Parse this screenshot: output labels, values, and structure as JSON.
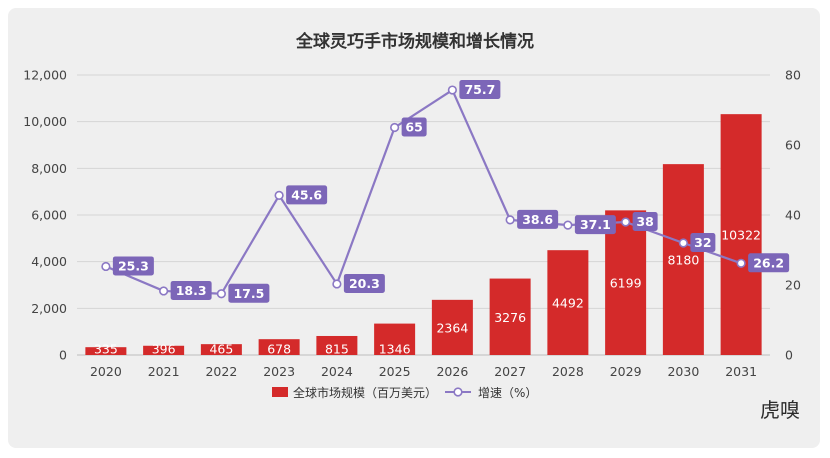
{
  "chart_data": {
    "type": "bar",
    "title": "全球灵巧手市场规模和增长情况",
    "categories": [
      "2020",
      "2021",
      "2022",
      "2023",
      "2024",
      "2025",
      "2026",
      "2027",
      "2028",
      "2029",
      "2030",
      "2031"
    ],
    "series": [
      {
        "name": "全球市场规模（百万美元）",
        "type": "bar",
        "axis": "left",
        "values": [
          335,
          396,
          465,
          678,
          815,
          1346,
          2364,
          3276,
          4492,
          6199,
          8180,
          10322
        ]
      },
      {
        "name": "增速（%）",
        "type": "line",
        "axis": "right",
        "values": [
          25.3,
          18.3,
          17.5,
          45.6,
          20.3,
          65,
          75.7,
          38.6,
          37.1,
          38,
          32,
          26.2
        ]
      }
    ],
    "y_left": {
      "min": 0,
      "max": 12000,
      "ticks": [
        "0",
        "2,000",
        "4,000",
        "6,000",
        "8,000",
        "10,000",
        "12,000"
      ]
    },
    "y_right": {
      "min": 0,
      "max": 80,
      "ticks": [
        "0",
        "20",
        "40",
        "60",
        "80"
      ]
    },
    "legend_position": "bottom",
    "colors": {
      "bar": "#d42a2a",
      "line": "#8b78c4",
      "label_box": "#7c66b8"
    }
  },
  "watermark": "虎嗅"
}
